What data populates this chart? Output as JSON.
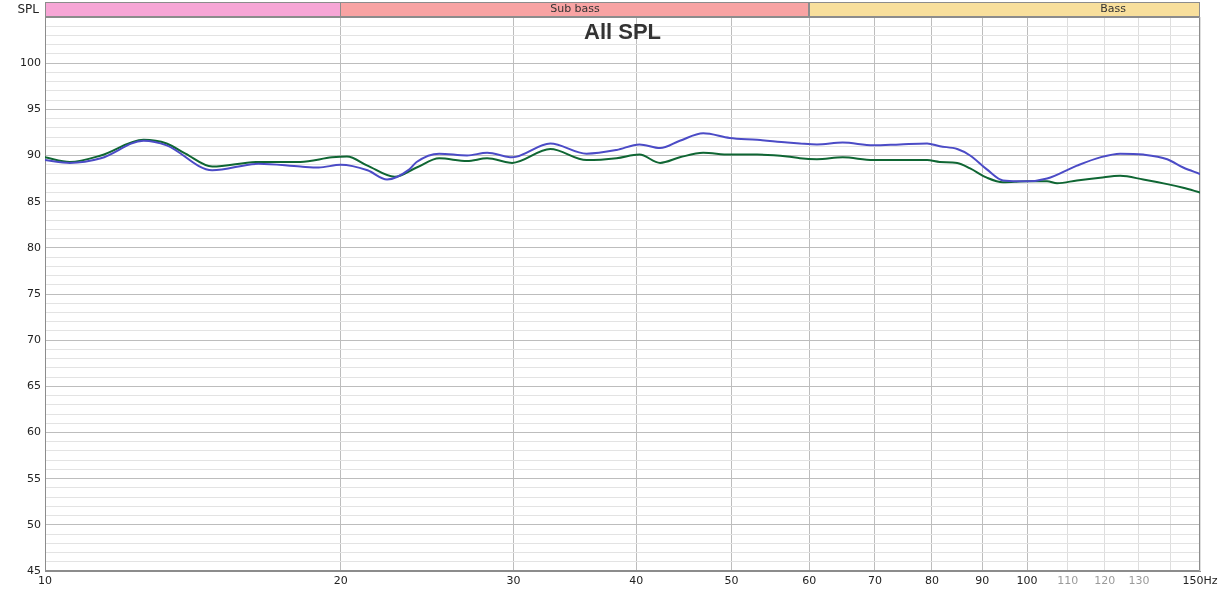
{
  "chart_data": {
    "type": "line",
    "title": "All SPL",
    "ylabel": "SPL",
    "series": [
      {
        "color": "#4b4bc6",
        "x": [
          10,
          10.6,
          11.4,
          12.6,
          13.3,
          14.8,
          16.5,
          18.2,
          19.0,
          20.0,
          21.3,
          22.3,
          23.5,
          23.9,
          25.2,
          26.9,
          28.2,
          29.9,
          32.7,
          35.6,
          38.2,
          40.3,
          42.3,
          44.3,
          46.8,
          49.8,
          53.1,
          57.0,
          58.7,
          61.1,
          64.9,
          69.7,
          74.2,
          79.1,
          81.5,
          84.9,
          87.5,
          91.0,
          94.5,
          100,
          104.8,
          112.4,
          118.7,
          124.4,
          131.3,
          138.9,
          144.2,
          150
        ],
        "values": [
          89.5,
          89.2,
          89.7,
          91.6,
          91.1,
          88.4,
          89.1,
          88.8,
          88.7,
          89.0,
          88.4,
          87.4,
          88.5,
          89.3,
          90.2,
          90.0,
          90.3,
          89.8,
          91.3,
          90.2,
          90.6,
          91.2,
          90.8,
          91.6,
          92.4,
          91.9,
          91.7,
          91.4,
          91.3,
          91.2,
          91.4,
          91.1,
          91.2,
          91.3,
          91.0,
          90.7,
          90.0,
          88.5,
          87.3,
          87.2,
          87.5,
          88.9,
          89.8,
          90.2,
          90.1,
          89.6,
          88.7,
          88.0
        ]
      },
      {
        "color": "#0f6633",
        "x": [
          10,
          10.6,
          11.4,
          12.6,
          13.3,
          13.9,
          14.8,
          16.5,
          18.2,
          19.6,
          20.3,
          21.3,
          22.7,
          23.9,
          25.2,
          26.9,
          28.2,
          29.9,
          32.7,
          35.6,
          38.2,
          40.3,
          42.3,
          44.3,
          46.8,
          49.8,
          53.1,
          57.0,
          58.7,
          61.1,
          64.9,
          69.7,
          74.2,
          79.1,
          81.5,
          84.9,
          87.5,
          91.0,
          94.5,
          100,
          104.8,
          107.3,
          112.4,
          118.7,
          124.4,
          131.3,
          138.9,
          144.2,
          150
        ],
        "values": [
          89.8,
          89.3,
          90.0,
          91.7,
          91.3,
          90.2,
          88.8,
          89.3,
          89.3,
          89.8,
          89.9,
          88.9,
          87.7,
          88.7,
          89.7,
          89.4,
          89.7,
          89.2,
          90.7,
          89.5,
          89.7,
          90.1,
          89.2,
          89.8,
          90.3,
          90.1,
          90.1,
          89.9,
          89.7,
          89.6,
          89.8,
          89.5,
          89.5,
          89.5,
          89.3,
          89.2,
          88.6,
          87.6,
          87.1,
          87.2,
          87.2,
          87.0,
          87.3,
          87.6,
          87.8,
          87.4,
          86.9,
          86.5,
          86.0
        ]
      }
    ],
    "xlim": [
      10,
      150
    ],
    "xticks": [
      10,
      20,
      30,
      40,
      50,
      60,
      70,
      80,
      90,
      100,
      110,
      120,
      130,
      {
        "value": 140,
        "label": null
      },
      {
        "value": 150,
        "label": "150Hz"
      }
    ],
    "ylim": [
      45,
      105
    ],
    "yticks": [
      45,
      {
        "value": 46,
        "label": null
      },
      {
        "value": 47,
        "label": null
      },
      {
        "value": 48,
        "label": null
      },
      {
        "value": 49,
        "label": null
      },
      50,
      {
        "value": 51,
        "label": null
      },
      {
        "value": 52,
        "label": null
      },
      {
        "value": 53,
        "label": null
      },
      {
        "value": 54,
        "label": null
      },
      55,
      {
        "value": 56,
        "label": null
      },
      {
        "value": 57,
        "label": null
      },
      {
        "value": 58,
        "label": null
      },
      {
        "value": 59,
        "label": null
      },
      60,
      {
        "value": 61,
        "label": null
      },
      {
        "value": 62,
        "label": null
      },
      {
        "value": 63,
        "label": null
      },
      {
        "value": 64,
        "label": null
      },
      65,
      {
        "value": 66,
        "label": null
      },
      {
        "value": 67,
        "label": null
      },
      {
        "value": 68,
        "label": null
      },
      {
        "value": 69,
        "label": null
      },
      70,
      {
        "value": 71,
        "label": null
      },
      {
        "value": 72,
        "label": null
      },
      {
        "value": 73,
        "label": null
      },
      {
        "value": 74,
        "label": null
      },
      75,
      {
        "value": 76,
        "label": null
      },
      {
        "value": 77,
        "label": null
      },
      {
        "value": 78,
        "label": null
      },
      {
        "value": 79,
        "label": null
      },
      80,
      {
        "value": 81,
        "label": null
      },
      {
        "value": 82,
        "label": null
      },
      {
        "value": 83,
        "label": null
      },
      {
        "value": 84,
        "label": null
      },
      85,
      {
        "value": 86,
        "label": null
      },
      {
        "value": 87,
        "label": null
      },
      {
        "value": 88,
        "label": null
      },
      {
        "value": 89,
        "label": null
      },
      90,
      {
        "value": 91,
        "label": null
      },
      {
        "value": 92,
        "label": null
      },
      {
        "value": 93,
        "label": null
      },
      {
        "value": 94,
        "label": null
      },
      95,
      {
        "value": 96,
        "label": null
      },
      {
        "value": 97,
        "label": null
      },
      {
        "value": 98,
        "label": null
      },
      {
        "value": 99,
        "label": null
      },
      100,
      {
        "value": 101,
        "label": null
      },
      {
        "value": 102,
        "label": null
      },
      {
        "value": 103,
        "label": null
      },
      {
        "value": 104,
        "label": null
      },
      {
        "value": 105,
        "label": null
      }
    ],
    "log": "x",
    "grid": true,
    "marker": "none",
    "line_style": "solid",
    "annotations": [
      "Sub bass",
      "Bass"
    ]
  }
}
